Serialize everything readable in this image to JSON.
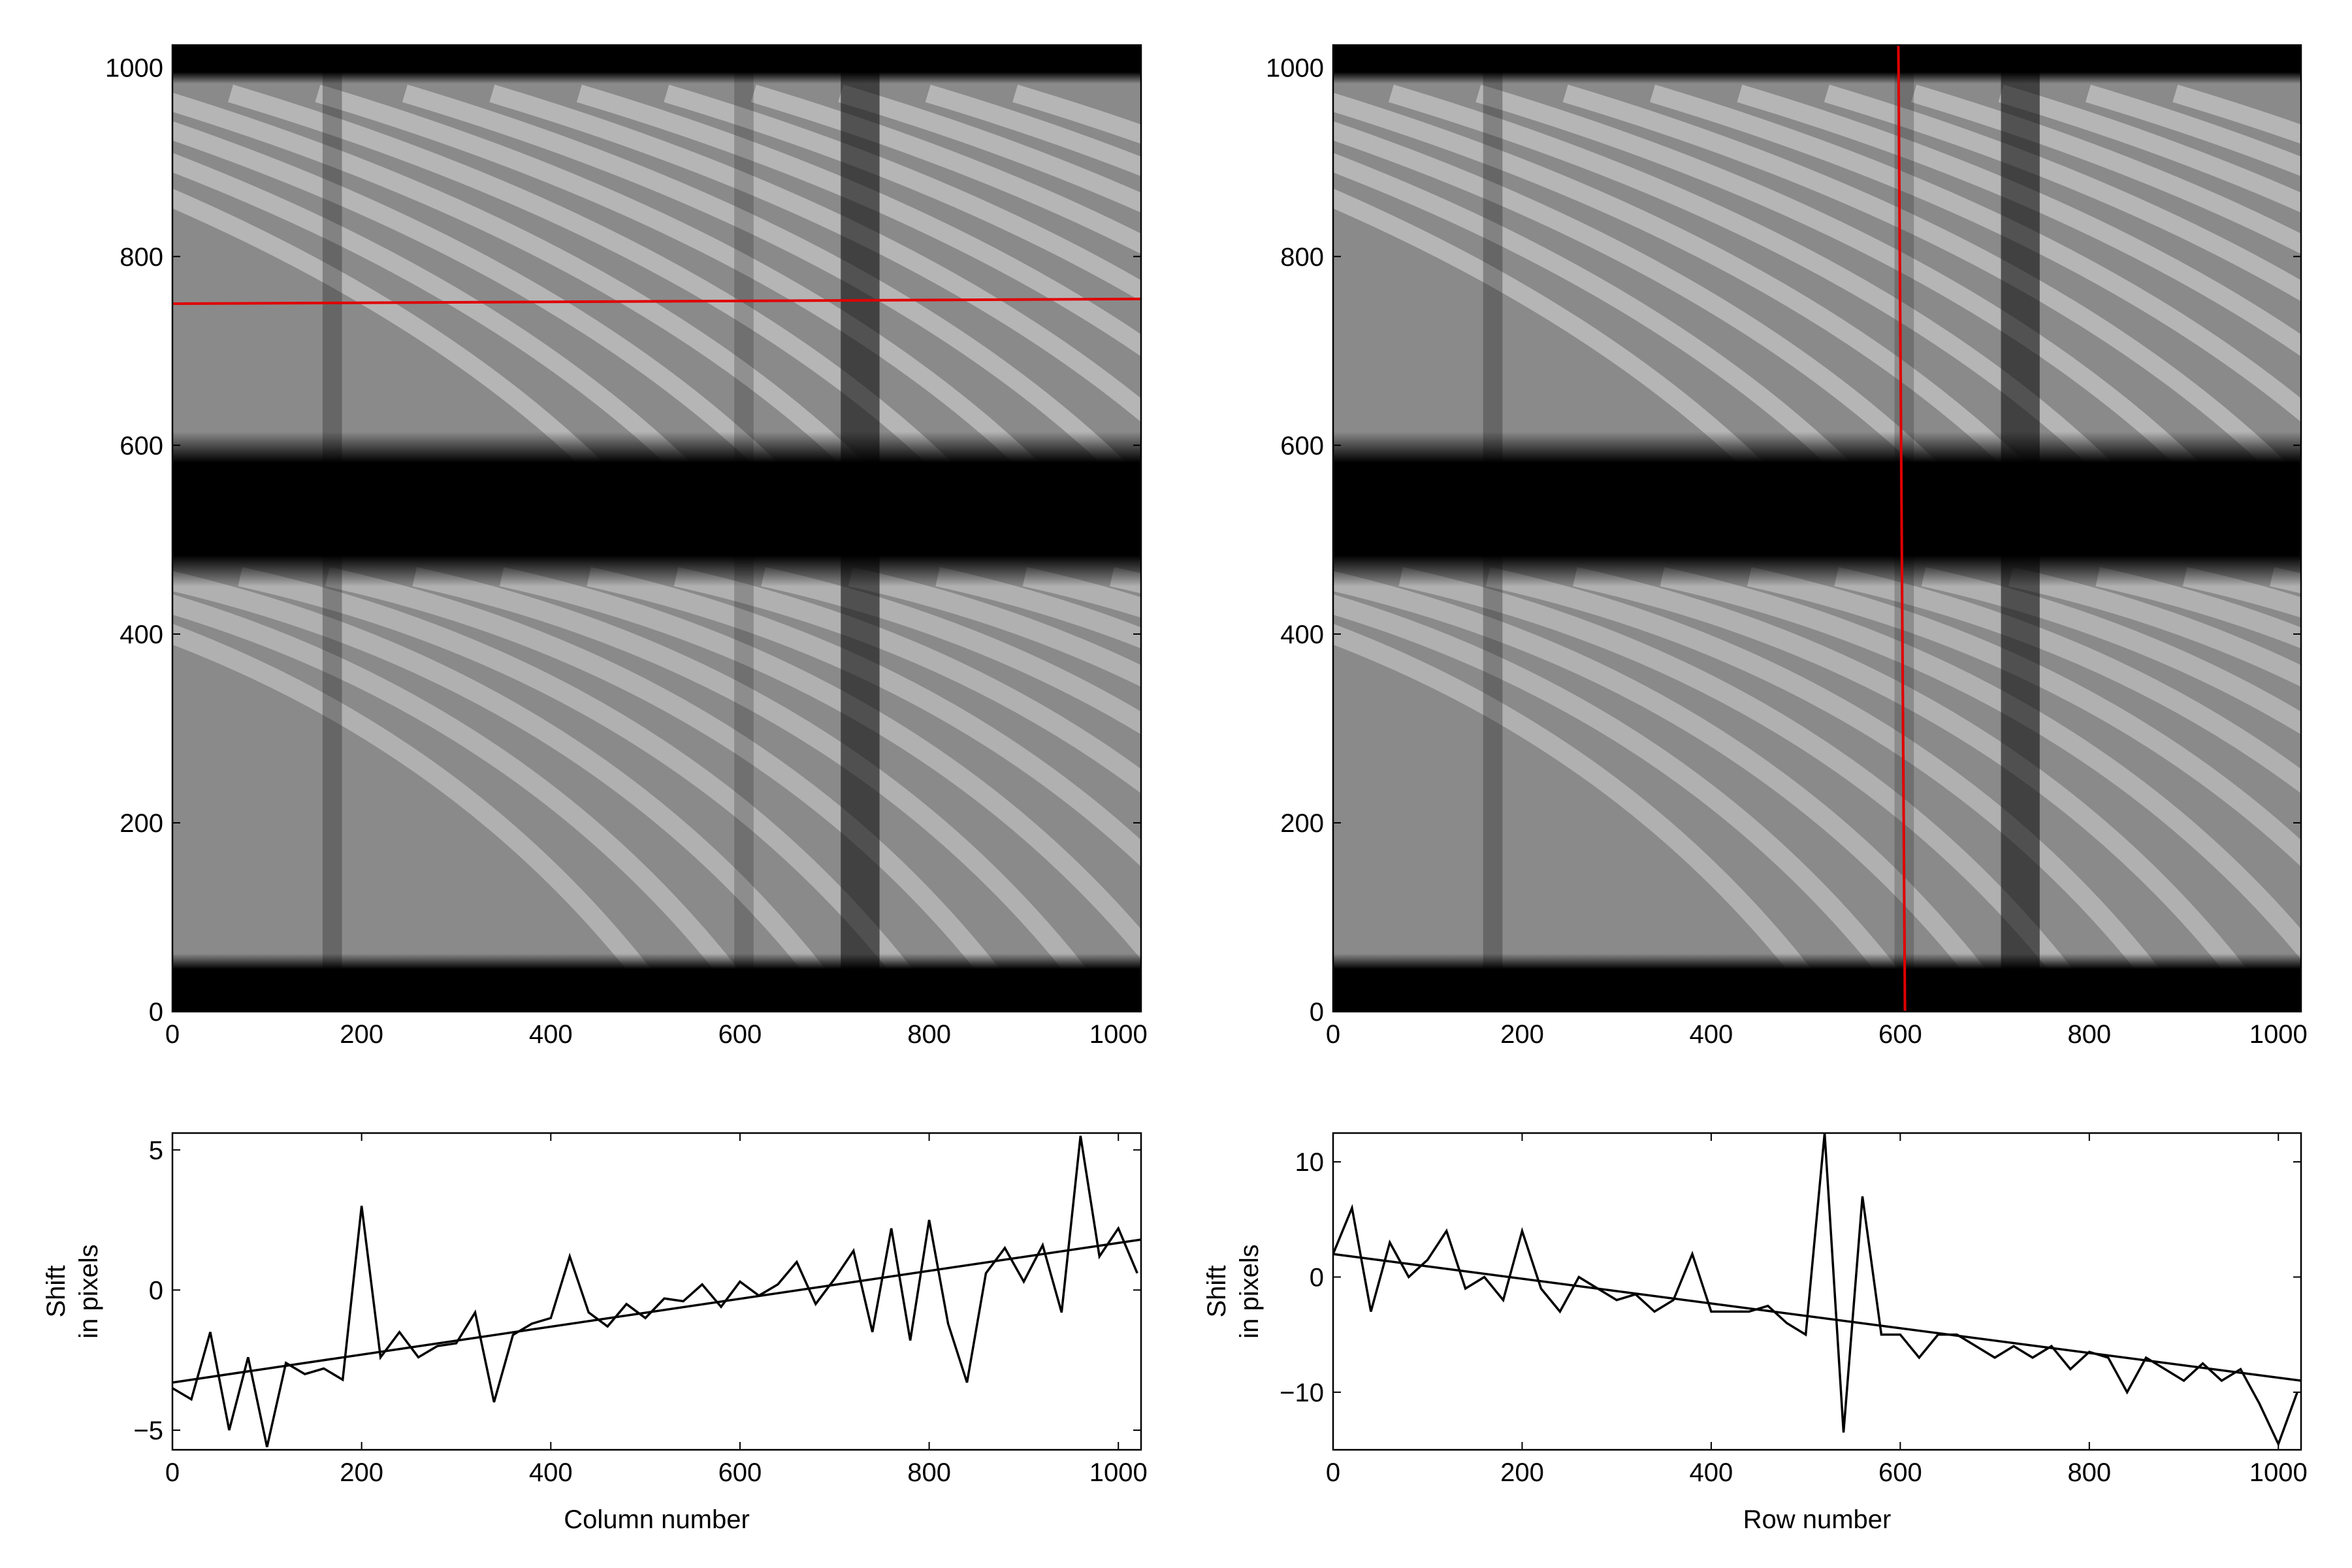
{
  "chart_data": [
    {
      "type": "image",
      "xlim": [
        0,
        1024
      ],
      "ylim": [
        0,
        1024
      ],
      "xticks": [
        0,
        200,
        400,
        600,
        800,
        1000
      ],
      "yticks": [
        0,
        200,
        400,
        600,
        800,
        1000
      ],
      "lines": [
        {
          "x": [
            0,
            1024
          ],
          "y": [
            750,
            755
          ],
          "color": "#e00000"
        }
      ]
    },
    {
      "type": "image",
      "xlim": [
        0,
        1024
      ],
      "ylim": [
        0,
        1024
      ],
      "xticks": [
        0,
        200,
        400,
        600,
        800,
        1000
      ],
      "yticks": [
        0,
        200,
        400,
        600,
        800,
        1000
      ],
      "lines": [
        {
          "x": [
            598,
            605
          ],
          "y": [
            1024,
            0
          ],
          "color": "#e00000"
        }
      ]
    },
    {
      "type": "line",
      "xlabel": "Column number",
      "ylabel": [
        "Shift",
        "in pixels"
      ],
      "xlim": [
        0,
        1024
      ],
      "ylim": [
        -5.7,
        5.6
      ],
      "xticks": [
        0,
        200,
        400,
        600,
        800,
        1000
      ],
      "yticks": [
        {
          "value": -5,
          "label": "−5"
        },
        0,
        5
      ],
      "series": [
        {
          "color": "#000000",
          "x": [
            0,
            20,
            40,
            60,
            80,
            100,
            120,
            140,
            160,
            180,
            200,
            220,
            240,
            260,
            280,
            300,
            320,
            340,
            360,
            380,
            400,
            420,
            440,
            460,
            480,
            500,
            520,
            540,
            560,
            580,
            600,
            620,
            640,
            660,
            680,
            700,
            720,
            740,
            760,
            780,
            800,
            820,
            840,
            860,
            880,
            900,
            920,
            940,
            960,
            980,
            1000,
            1020
          ],
          "values": [
            -3.5,
            -3.9,
            -1.5,
            -5,
            -2.4,
            -5.6,
            -2.6,
            -3,
            -2.8,
            -3.2,
            3,
            -2.4,
            -1.5,
            -2.4,
            -2,
            -1.9,
            -0.8,
            -4,
            -1.6,
            -1.2,
            -1,
            1.2,
            -0.8,
            -1.3,
            -0.5,
            -1,
            -0.3,
            -0.4,
            0.2,
            -0.6,
            0.3,
            -0.2,
            0.2,
            1,
            -0.5,
            0.4,
            1.4,
            -1.5,
            2.2,
            -1.8,
            2.5,
            -1.2,
            -3.3,
            0.6,
            1.5,
            0.3,
            1.6,
            -0.8,
            5.5,
            1.2,
            2.2,
            0.6
          ]
        },
        {
          "color": "#000000",
          "x": [
            0,
            1024
          ],
          "values": [
            -3.3,
            1.8
          ]
        }
      ]
    },
    {
      "type": "line",
      "xlabel": "Row number",
      "ylabel": [
        "Shift",
        "in pixels"
      ],
      "xlim": [
        0,
        1024
      ],
      "ylim": [
        -15,
        12.5
      ],
      "xticks": [
        0,
        200,
        400,
        600,
        800,
        1000
      ],
      "yticks": [
        {
          "value": -10,
          "label": "−10"
        },
        0,
        10
      ],
      "series": [
        {
          "color": "#000000",
          "x": [
            0,
            20,
            40,
            60,
            80,
            100,
            120,
            140,
            160,
            180,
            200,
            220,
            240,
            260,
            280,
            300,
            320,
            340,
            360,
            380,
            400,
            420,
            440,
            460,
            480,
            500,
            520,
            540,
            560,
            580,
            600,
            620,
            640,
            660,
            680,
            700,
            720,
            740,
            760,
            780,
            800,
            820,
            840,
            860,
            880,
            900,
            920,
            940,
            960,
            980,
            1000,
            1020
          ],
          "values": [
            2,
            6,
            -3,
            3,
            0,
            1.5,
            4,
            -1,
            0,
            -2,
            4,
            -1,
            -3,
            0,
            -1,
            -2,
            -1.5,
            -3,
            -2,
            2,
            -3,
            -3,
            -3,
            -2.5,
            -4,
            -5,
            12.5,
            -13.5,
            7,
            -5,
            -5,
            -7,
            -5,
            -5,
            -6,
            -7,
            -6,
            -7,
            -6,
            -8,
            -6.5,
            -7,
            -10,
            -7,
            -8,
            -9,
            -7.5,
            -9,
            -8,
            -11,
            -14.5,
            -10
          ]
        },
        {
          "color": "#000000",
          "x": [
            0,
            1024
          ],
          "values": [
            2,
            -9
          ]
        }
      ]
    }
  ]
}
